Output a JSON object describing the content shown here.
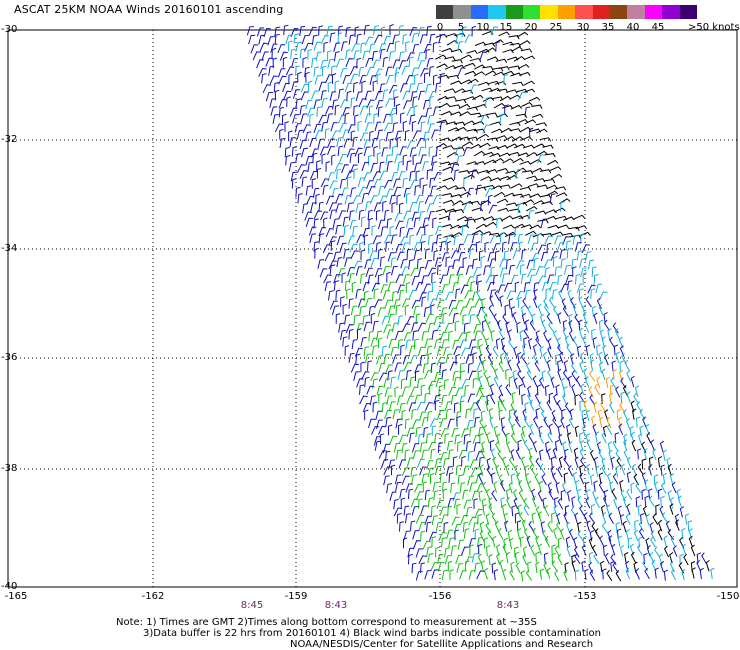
{
  "title": "ASCAT 25KM NOAA Winds 20160101 ascending",
  "legend": {
    "colors": [
      "#3f3f3f",
      "#909090",
      "#2a6cff",
      "#20c8f0",
      "#1a9a1a",
      "#30e030",
      "#ffe000",
      "#ffa000",
      "#ff5050",
      "#e02020",
      "#8b4513",
      "#c080a0",
      "#ff00ff",
      "#9000d0",
      "#3a0070"
    ],
    "labels": [
      "0",
      "5",
      "10",
      "15",
      "20",
      "25",
      "30",
      "35",
      "40",
      "45",
      ">50 knots"
    ]
  },
  "axes": {
    "lat_labels": [
      "-30",
      "-32",
      "-34",
      "-36",
      "-38",
      "-40"
    ],
    "lon_labels": [
      "-165",
      "-162",
      "-159",
      "-156",
      "-153",
      "-150"
    ]
  },
  "times": [
    "8:45",
    "8:43",
    "8:43"
  ],
  "notes": [
    "Note: 1) Times are GMT 2)Times along bottom correspond to measurement at ~35S",
    "3)Data buffer is 22 hrs from 20160101 4) Black wind barbs indicate possible contamination",
    "NOAA/NESDIS/Center for Satellite Applications and Research"
  ],
  "barb_colors": {
    "blue": "#1010c0",
    "cyan": "#10b0e0",
    "green": "#10c010",
    "black": "#000000",
    "orange": "#ff9900"
  }
}
